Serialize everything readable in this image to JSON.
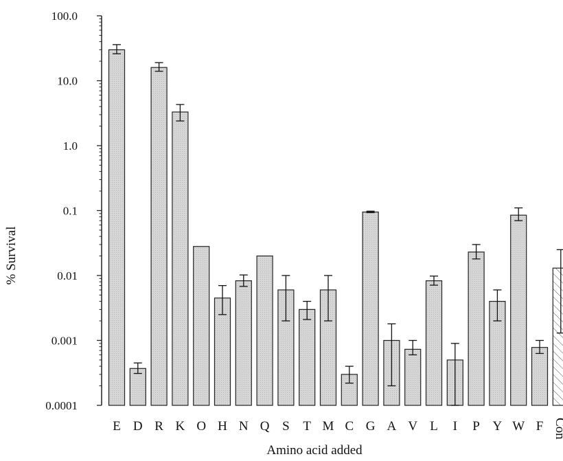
{
  "chart_data": {
    "type": "bar",
    "ylabel": "% Survival",
    "xlabel": "Amino acid added",
    "yscale": "log",
    "ylim": [
      0.0001,
      100
    ],
    "yticks": [
      "100.0",
      "10.0",
      "1.0",
      "0.1",
      "0.01",
      "0.001",
      "0.0001"
    ],
    "ytick_values": [
      100,
      10,
      1,
      0.1,
      0.01,
      0.001,
      0.0001
    ],
    "categories": [
      "E",
      "D",
      "R",
      "K",
      "O",
      "H",
      "N",
      "Q",
      "S",
      "T",
      "M",
      "C",
      "G",
      "A",
      "V",
      "L",
      "I",
      "P",
      "Y",
      "W",
      "F",
      "Con"
    ],
    "values": [
      30,
      0.00037,
      16,
      3.3,
      0.028,
      0.0045,
      0.0083,
      0.02,
      0.006,
      0.003,
      0.006,
      0.0003,
      0.095,
      0.001,
      0.00073,
      0.0083,
      0.0005,
      0.023,
      0.004,
      0.085,
      0.00078,
      0.013
    ],
    "err_low": [
      26,
      0.00031,
      14,
      2.4,
      null,
      0.0025,
      0.0068,
      null,
      0.002,
      0.0021,
      0.002,
      0.00022,
      0.093,
      0.0002,
      0.0006,
      0.0071,
      0.0001,
      0.018,
      0.002,
      0.07,
      0.00063,
      0.0013
    ],
    "err_high": [
      36,
      0.00045,
      19,
      4.3,
      null,
      0.007,
      0.0102,
      null,
      0.01,
      0.004,
      0.01,
      0.0004,
      0.098,
      0.0018,
      0.001,
      0.0098,
      0.0009,
      0.03,
      0.006,
      0.11,
      0.001,
      0.025
    ],
    "bar_fill": "#d0d0d0",
    "control_fill": "hatched",
    "grid": false
  }
}
